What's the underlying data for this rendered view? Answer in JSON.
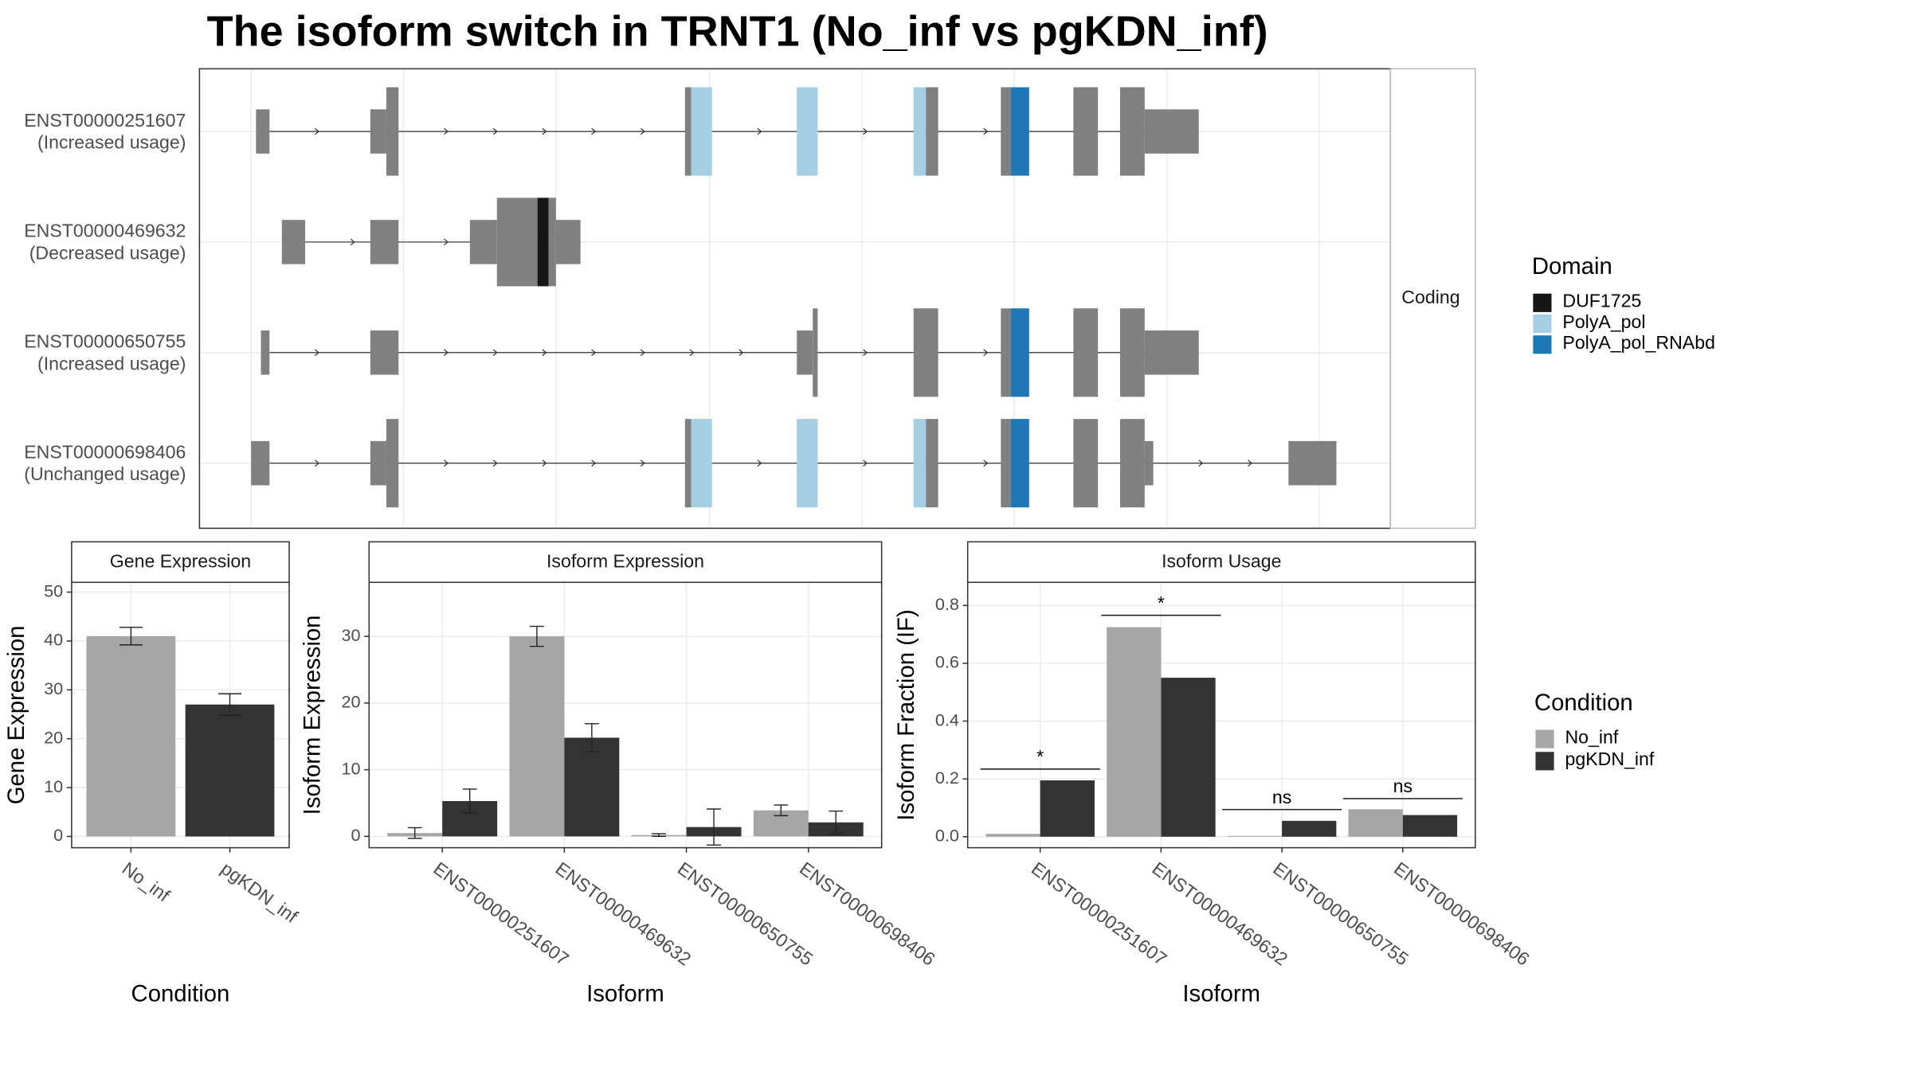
{
  "title": "The isoform switch in TRNT1 (No_inf vs pgKDN_inf)",
  "transcripts": [
    {
      "name": "ENST00000251607",
      "usage": "(Increased usage)"
    },
    {
      "name": "ENST00000469632",
      "usage": "(Decreased usage)"
    },
    {
      "name": "ENST00000650755",
      "usage": "(Increased usage)"
    },
    {
      "name": "ENST00000698406",
      "usage": "(Unchanged usage)"
    }
  ],
  "facet_label": "Coding",
  "domain_legend": {
    "title": "Domain",
    "items": [
      {
        "name": "DUF1725",
        "color": "#161616"
      },
      {
        "name": "PolyA_pol",
        "color": "#a6cee3"
      },
      {
        "name": "PolyA_pol_RNAbd",
        "color": "#1f78b4"
      }
    ]
  },
  "condition_legend": {
    "title": "Condition",
    "items": [
      {
        "name": "No_inf",
        "color": "#a6a6a6"
      },
      {
        "name": "pgKDN_inf",
        "color": "#333333"
      }
    ]
  },
  "chart_data": [
    {
      "type": "bar",
      "title": "Gene Expression",
      "xlabel": "Condition",
      "ylabel": "Gene Expression",
      "categories": [
        "No_inf",
        "pgKDN_inf"
      ],
      "values": [
        41,
        27
      ],
      "errors": [
        1.8,
        2.2
      ],
      "colors": [
        "#a6a6a6",
        "#333333"
      ],
      "ylim": [
        -2.3,
        52
      ],
      "yticks": [
        0,
        10,
        20,
        30,
        40,
        50
      ],
      "grid": true
    },
    {
      "type": "bar",
      "title": "Isoform Expression",
      "xlabel": "Isoform",
      "ylabel": "Isoform Expression",
      "categories": [
        "ENST00000251607",
        "ENST00000469632",
        "ENST00000650755",
        "ENST00000698406"
      ],
      "series": [
        {
          "name": "No_inf",
          "color": "#a6a6a6",
          "values": [
            0.5,
            30,
            0.2,
            3.9
          ],
          "errors": [
            0.8,
            1.5,
            0.2,
            0.8
          ]
        },
        {
          "name": "pgKDN_inf",
          "color": "#333333",
          "values": [
            5.3,
            14.8,
            1.4,
            2.1
          ],
          "errors": [
            1.8,
            2.1,
            2.7,
            1.7
          ]
        }
      ],
      "ylim": [
        -1.7,
        38.1
      ],
      "yticks": [
        0,
        10,
        20,
        30
      ],
      "grid": true
    },
    {
      "type": "bar",
      "title": "Isoform Usage",
      "xlabel": "Isoform",
      "ylabel": "Isoform Fraction (IF)",
      "categories": [
        "ENST00000251607",
        "ENST00000469632",
        "ENST00000650755",
        "ENST00000698406"
      ],
      "series": [
        {
          "name": "No_inf",
          "color": "#a6a6a6",
          "values": [
            0.01,
            0.725,
            0.003,
            0.095
          ]
        },
        {
          "name": "pgKDN_inf",
          "color": "#333333",
          "values": [
            0.195,
            0.55,
            0.055,
            0.075
          ]
        }
      ],
      "annotations": [
        {
          "label": "*",
          "y": 0.234
        },
        {
          "label": "*",
          "y": 0.766
        },
        {
          "label": "ns",
          "y": 0.094
        },
        {
          "label": "ns",
          "y": 0.132
        }
      ],
      "ylim": [
        -0.038,
        0.88
      ],
      "yticks": [
        {
          "value": 0,
          "label": "0.0"
        },
        0.2,
        0.4,
        0.6,
        0.8
      ],
      "grid": true
    }
  ]
}
